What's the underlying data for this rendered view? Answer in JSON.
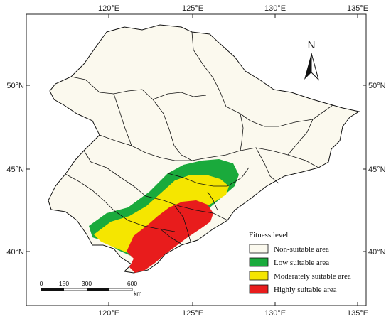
{
  "map": {
    "lon_ticks": [
      "120°E",
      "125°E",
      "130°E",
      "135°E"
    ],
    "lat_ticks": [
      "50°N",
      "45°N",
      "40°N"
    ],
    "north_label": "N"
  },
  "legend": {
    "title": "Fitness level",
    "items": [
      {
        "label": "Non-suitable area",
        "color": "#fbf9ee"
      },
      {
        "label": "Low suitable area",
        "color": "#1aaa3c"
      },
      {
        "label": "Moderately suitable area",
        "color": "#f5e600"
      },
      {
        "label": "Highly suitable area",
        "color": "#e81c1c"
      }
    ]
  },
  "scale_bar": {
    "labels": [
      "0",
      "150",
      "300",
      "600"
    ],
    "unit": "km"
  },
  "colors": {
    "frame": "#222222",
    "boundary": "#111111",
    "land": "#fbf9ee"
  }
}
